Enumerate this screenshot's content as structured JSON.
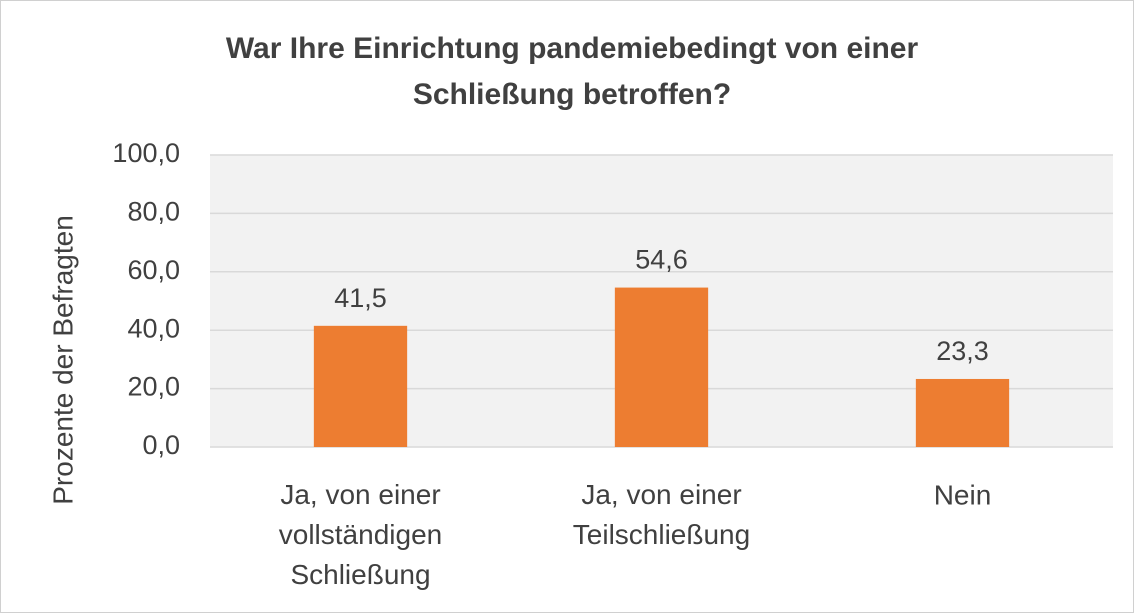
{
  "chart_data": {
    "type": "bar",
    "title": "War Ihre Einrichtung pandemiebedingt von einer\nSchließung betroffen?",
    "y_label": "Prozente der Befragten",
    "categories": [
      "Ja, von einer\nvollständigen\nSchließung",
      "Ja, von einer\nTeilschließung",
      "Nein"
    ],
    "values": [
      41.5,
      54.6,
      23.3
    ],
    "value_labels": [
      "41,5",
      "54,6",
      "23,3"
    ],
    "color": "#ed7d31",
    "ylim": [
      0,
      100
    ],
    "yticks": [
      {
        "value": 0,
        "label": "0,0"
      },
      {
        "value": 20,
        "label": "20,0"
      },
      {
        "value": 40,
        "label": "40,0"
      },
      {
        "value": 60,
        "label": "60,0"
      },
      {
        "value": 80,
        "label": "80,0"
      },
      {
        "value": 100,
        "label": "100,0"
      }
    ],
    "grid": true
  }
}
